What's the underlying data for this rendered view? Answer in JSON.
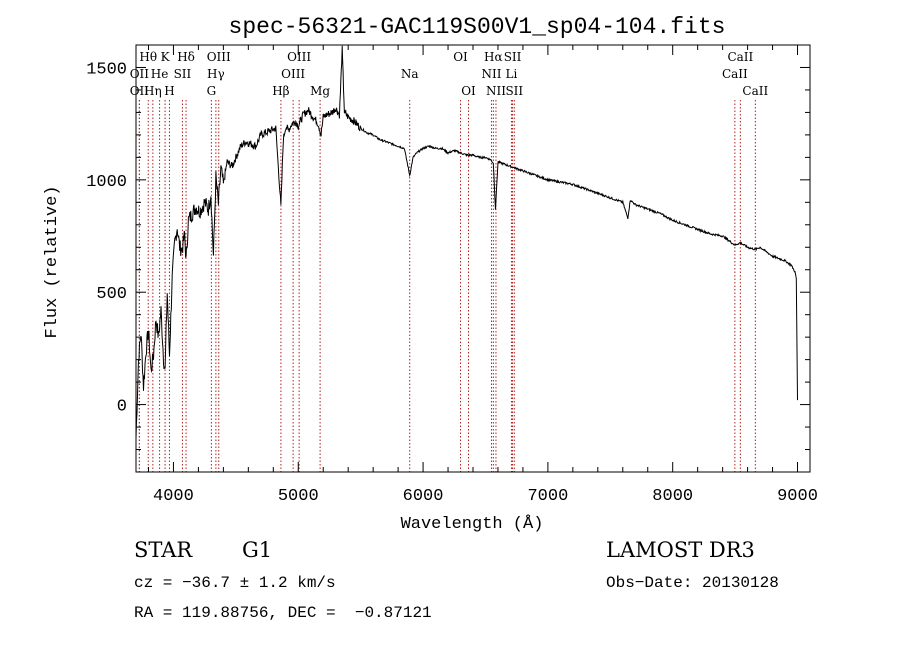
{
  "chart_data": {
    "type": "line",
    "title": "spec-56321-GAC119S00V1_sp04-104.fits",
    "xlabel": "Wavelength (Å)",
    "ylabel": "Flux (relative)",
    "xlim": [
      3700,
      9100
    ],
    "ylim": [
      -300,
      1600
    ],
    "xticks": [
      4000,
      5000,
      6000,
      7000,
      8000,
      9000
    ],
    "yticks": [
      0,
      500,
      1000,
      1500
    ],
    "series": [
      {
        "name": "spectrum",
        "x": [
          3700,
          3720,
          3740,
          3760,
          3780,
          3800,
          3820,
          3840,
          3860,
          3880,
          3900,
          3920,
          3933,
          3950,
          3968,
          3990,
          4010,
          4030,
          4050,
          4070,
          4090,
          4101,
          4120,
          4150,
          4180,
          4210,
          4250,
          4280,
          4300,
          4320,
          4340,
          4360,
          4380,
          4400,
          4430,
          4470,
          4500,
          4540,
          4580,
          4620,
          4660,
          4700,
          4740,
          4780,
          4820,
          4861,
          4880,
          4900,
          4920,
          4950,
          4980,
          5000,
          5040,
          5080,
          5120,
          5160,
          5183,
          5200,
          5230,
          5270,
          5300,
          5330,
          5352,
          5370,
          5400,
          5450,
          5500,
          5550,
          5600,
          5650,
          5700,
          5750,
          5800,
          5850,
          5893,
          5920,
          5950,
          6000,
          6050,
          6100,
          6150,
          6200,
          6250,
          6300,
          6350,
          6400,
          6450,
          6500,
          6540,
          6563,
          6580,
          6600,
          6650,
          6700,
          6750,
          6800,
          6850,
          6900,
          6950,
          7000,
          7100,
          7200,
          7300,
          7400,
          7500,
          7600,
          7640,
          7660,
          7700,
          7800,
          7900,
          8000,
          8100,
          8200,
          8300,
          8400,
          8498,
          8542,
          8600,
          8662,
          8700,
          8800,
          8850,
          8900,
          8950,
          8980,
          8990,
          9000
        ],
        "y": [
          -150,
          200,
          320,
          80,
          240,
          330,
          150,
          220,
          380,
          300,
          420,
          210,
          150,
          500,
          220,
          560,
          720,
          790,
          700,
          690,
          760,
          640,
          820,
          850,
          880,
          860,
          900,
          870,
          940,
          660,
          1010,
          890,
          1050,
          980,
          1080,
          1060,
          1100,
          1150,
          1170,
          1160,
          1150,
          1200,
          1210,
          1220,
          1230,
          880,
          1180,
          1240,
          1220,
          1250,
          1260,
          1240,
          1290,
          1310,
          1280,
          1250,
          1200,
          1280,
          1290,
          1300,
          1320,
          1290,
          1580,
          1300,
          1280,
          1260,
          1230,
          1210,
          1200,
          1180,
          1170,
          1160,
          1150,
          1140,
          1020,
          1100,
          1120,
          1140,
          1150,
          1140,
          1140,
          1120,
          1130,
          1120,
          1110,
          1110,
          1100,
          1100,
          1090,
          1075,
          870,
          1080,
          1070,
          1060,
          1050,
          1040,
          1030,
          1020,
          1010,
          1000,
          990,
          980,
          960,
          940,
          920,
          900,
          830,
          910,
          890,
          870,
          850,
          820,
          800,
          780,
          760,
          750,
          710,
          720,
          700,
          690,
          700,
          660,
          650,
          640,
          620,
          590,
          560,
          20
        ]
      }
    ],
    "spectral_lines": [
      {
        "label": "Hθ",
        "x": 3798,
        "row": 1
      },
      {
        "label": "OII",
        "x": 3727,
        "row": 2
      },
      {
        "label": "OII",
        "x": 3727,
        "row": 3
      },
      {
        "label": "Hη",
        "x": 3835,
        "row": 3
      },
      {
        "label": "He",
        "x": 3889,
        "row": 2
      },
      {
        "label": "K",
        "x": 3933,
        "row": 1
      },
      {
        "label": "H",
        "x": 3968,
        "row": 3
      },
      {
        "label": "SII",
        "x": 4072,
        "row": 2
      },
      {
        "label": "Hδ",
        "x": 4101,
        "row": 1
      },
      {
        "label": "OIII",
        "x": 4363,
        "row": 1
      },
      {
        "label": "Hγ",
        "x": 4340,
        "row": 2
      },
      {
        "label": "G",
        "x": 4304,
        "row": 3
      },
      {
        "label": "Hβ",
        "x": 4861,
        "row": 3
      },
      {
        "label": "OIII",
        "x": 5007,
        "row": 1
      },
      {
        "label": "OIII",
        "x": 4959,
        "row": 2
      },
      {
        "label": "Mg",
        "x": 5175,
        "row": 3
      },
      {
        "label": "Na",
        "x": 5893,
        "row": 2
      },
      {
        "label": "OI",
        "x": 6300,
        "row": 1
      },
      {
        "label": "OI",
        "x": 6364,
        "row": 3
      },
      {
        "label": "Hα",
        "x": 6563,
        "row": 1
      },
      {
        "label": "NII",
        "x": 6548,
        "row": 2
      },
      {
        "label": "NII",
        "x": 6584,
        "row": 3
      },
      {
        "label": "SII",
        "x": 6717,
        "row": 1
      },
      {
        "label": "Li",
        "x": 6708,
        "row": 2
      },
      {
        "label": "SII",
        "x": 6731,
        "row": 3
      },
      {
        "label": "CaII",
        "x": 8542,
        "row": 1
      },
      {
        "label": "CaII",
        "x": 8498,
        "row": 2
      },
      {
        "label": "CaII",
        "x": 8662,
        "row": 3
      }
    ]
  },
  "info": {
    "class_label": "STAR",
    "subclass": "G1",
    "cz": "cz = −36.7 ± 1.2 km/s",
    "coords": "RA = 119.88756, DEC =  −0.87121",
    "survey": "LAMOST DR3",
    "obs_date": "Obs−Date: 20130128"
  }
}
